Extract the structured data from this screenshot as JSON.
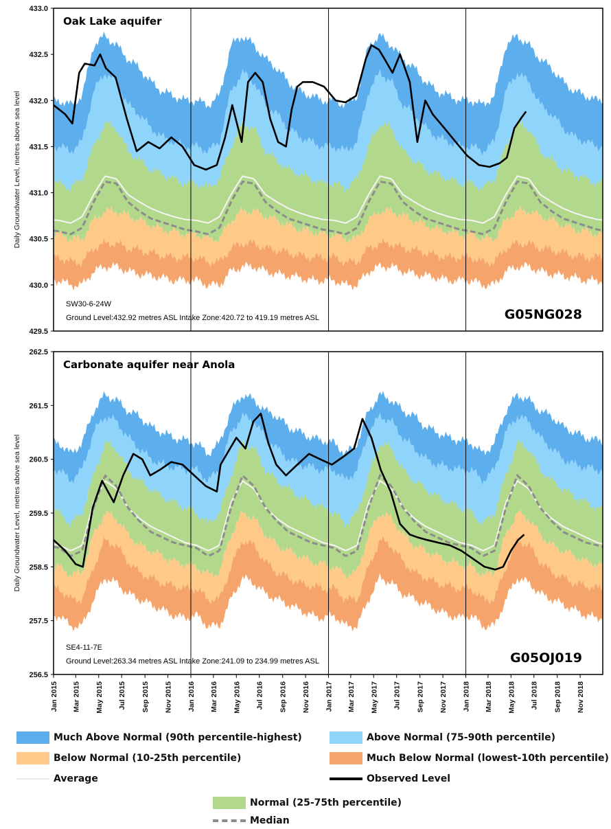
{
  "chart_data": [
    {
      "type": "area",
      "title": "Oak Lake aquifer",
      "ylabel": "Daily Groundwater Level, metres above sea level",
      "ylim": [
        429.5,
        433.0
      ],
      "yticks": [
        "433.0",
        "432.5",
        "432.0",
        "431.5",
        "431.0",
        "430.5",
        "430.0",
        "429.5"
      ],
      "xlim": [
        "2015-01-01",
        "2018-12-31"
      ],
      "year_dividers": [
        "2016-01-01",
        "2017-01-01",
        "2018-01-01"
      ],
      "site_location": "SW30-6-24W",
      "site_info": "Ground Level:432.92 metres ASL   Intake Zone:420.72 to 419.19 metres ASL",
      "station_id": "G05NG028",
      "annual_profile": {
        "month": [
          1,
          2,
          3,
          4,
          5,
          6,
          7,
          8,
          9,
          10,
          11,
          12
        ],
        "min": [
          430.05,
          430.0,
          430.0,
          430.15,
          430.2,
          430.2,
          430.15,
          430.12,
          430.1,
          430.08,
          430.05,
          430.05
        ],
        "p10": [
          430.3,
          430.25,
          430.25,
          430.4,
          430.45,
          430.45,
          430.4,
          430.38,
          430.35,
          430.32,
          430.3,
          430.3
        ],
        "p25": [
          430.55,
          430.5,
          430.5,
          430.7,
          430.8,
          430.8,
          430.75,
          430.7,
          430.65,
          430.6,
          430.58,
          430.55
        ],
        "median": [
          430.58,
          430.55,
          430.62,
          430.9,
          431.12,
          431.1,
          430.9,
          430.8,
          430.72,
          430.68,
          430.64,
          430.6
        ],
        "average": [
          430.7,
          430.67,
          430.74,
          430.98,
          431.18,
          431.15,
          430.98,
          430.9,
          430.83,
          430.78,
          430.74,
          430.71
        ],
        "p75": [
          431.1,
          431.05,
          431.15,
          431.5,
          431.75,
          431.7,
          431.45,
          431.35,
          431.25,
          431.2,
          431.15,
          431.1
        ],
        "p90": [
          431.5,
          431.45,
          431.55,
          432.1,
          432.3,
          432.2,
          431.95,
          431.85,
          431.7,
          431.6,
          431.55,
          431.5
        ],
        "max": [
          432.0,
          431.95,
          432.05,
          432.6,
          432.7,
          432.6,
          432.45,
          432.35,
          432.2,
          432.1,
          432.05,
          432.0
        ]
      },
      "observed": {
        "x": [
          "2015-01-01",
          "2015-02-01",
          "2015-02-20",
          "2015-03-10",
          "2015-03-25",
          "2015-04-20",
          "2015-05-05",
          "2015-05-20",
          "2015-06-15",
          "2015-07-15",
          "2015-08-10",
          "2015-09-10",
          "2015-10-10",
          "2015-11-10",
          "2015-12-10",
          "2016-01-10",
          "2016-02-10",
          "2016-03-10",
          "2016-04-01",
          "2016-04-20",
          "2016-05-15",
          "2016-06-01",
          "2016-06-20",
          "2016-07-10",
          "2016-07-30",
          "2016-08-20",
          "2016-09-10",
          "2016-09-25",
          "2016-10-10",
          "2016-10-25",
          "2016-11-20",
          "2016-12-20",
          "2017-01-20",
          "2017-02-15",
          "2017-03-15",
          "2017-04-10",
          "2017-04-25",
          "2017-05-15",
          "2017-05-30",
          "2017-06-20",
          "2017-07-10",
          "2017-08-05",
          "2017-08-25",
          "2017-09-15",
          "2017-10-05",
          "2017-11-05",
          "2017-12-05",
          "2018-01-05",
          "2018-02-05",
          "2018-03-05",
          "2018-04-01",
          "2018-04-20",
          "2018-05-10",
          "2018-05-30",
          "2018-06-10"
        ],
        "y": [
          431.95,
          431.85,
          431.75,
          432.3,
          432.4,
          432.38,
          432.5,
          432.35,
          432.25,
          431.8,
          431.45,
          431.55,
          431.48,
          431.6,
          431.5,
          431.3,
          431.25,
          431.3,
          431.6,
          431.95,
          431.55,
          432.2,
          432.3,
          432.2,
          431.8,
          431.55,
          431.5,
          431.9,
          432.15,
          432.2,
          432.2,
          432.15,
          432.0,
          431.98,
          432.05,
          432.45,
          432.6,
          432.55,
          432.45,
          432.3,
          432.5,
          432.2,
          431.55,
          432.0,
          431.85,
          431.7,
          431.55,
          431.4,
          431.3,
          431.28,
          431.32,
          431.38,
          431.7,
          431.82,
          431.88
        ]
      }
    },
    {
      "type": "area",
      "title": "Carbonate aquifer near Anola",
      "ylabel": "Daily Groundwater Level, metres above sea level",
      "ylim": [
        256.5,
        262.5
      ],
      "yticks": [
        "262.5",
        "261.5",
        "260.5",
        "259.5",
        "258.5",
        "257.5",
        "256.5"
      ],
      "xlim": [
        "2015-01-01",
        "2018-12-31"
      ],
      "year_dividers": [
        "2016-01-01",
        "2017-01-01",
        "2018-01-01"
      ],
      "site_location": "SE4-11-7E",
      "site_info": "Ground Level:263.34 metres ASL   Intake Zone:241.09 to 234.99 metres ASL",
      "station_id": "G05OJ019",
      "xticks": [
        "Jan 2015",
        "Mar 2015",
        "May 2015",
        "Jul 2015",
        "Sep 2015",
        "Nov 2015",
        "Jan 2016",
        "Mar 2016",
        "May 2016",
        "Jul 2016",
        "Sep 2016",
        "Nov 2016",
        "Jan 2017",
        "Mar 2017",
        "May 2017",
        "Jul 2017",
        "Sep 2017",
        "Nov 2017",
        "Jan 2018",
        "Mar 2018",
        "May 2018",
        "Jul 2018",
        "Sep 2018",
        "Nov 2018"
      ],
      "annual_profile": {
        "month": [
          1,
          2,
          3,
          4,
          5,
          6,
          7,
          8,
          9,
          10,
          11,
          12
        ],
        "min": [
          257.6,
          257.4,
          257.4,
          257.9,
          258.3,
          258.2,
          258.0,
          257.9,
          257.8,
          257.7,
          257.6,
          257.55
        ],
        "p10": [
          258.1,
          257.9,
          257.9,
          258.5,
          259.0,
          258.9,
          258.6,
          258.4,
          258.3,
          258.2,
          258.15,
          258.1
        ],
        "p25": [
          258.5,
          258.35,
          258.4,
          259.1,
          259.5,
          259.4,
          259.1,
          258.9,
          258.8,
          258.7,
          258.6,
          258.55
        ],
        "median": [
          258.85,
          258.7,
          258.8,
          259.6,
          260.2,
          260.0,
          259.6,
          259.35,
          259.15,
          259.05,
          258.95,
          258.9
        ],
        "average": [
          258.9,
          258.8,
          258.9,
          259.7,
          260.1,
          259.95,
          259.6,
          259.4,
          259.25,
          259.15,
          259.05,
          258.95
        ],
        "p75": [
          259.5,
          259.3,
          259.5,
          260.2,
          260.8,
          260.7,
          260.3,
          260.1,
          259.95,
          259.8,
          259.7,
          259.6
        ],
        "p90": [
          260.3,
          260.1,
          260.3,
          261.0,
          261.3,
          261.2,
          260.9,
          260.7,
          260.5,
          260.4,
          260.35,
          260.3
        ],
        "max": [
          260.8,
          260.6,
          260.8,
          261.4,
          261.7,
          261.6,
          261.4,
          261.3,
          261.1,
          261.0,
          260.9,
          260.85
        ]
      },
      "observed": {
        "x": [
          "2015-01-01",
          "2015-02-01",
          "2015-03-01",
          "2015-03-20",
          "2015-04-15",
          "2015-05-10",
          "2015-06-10",
          "2015-07-05",
          "2015-08-01",
          "2015-08-25",
          "2015-09-15",
          "2015-10-10",
          "2015-11-10",
          "2015-12-10",
          "2016-01-10",
          "2016-02-10",
          "2016-03-10",
          "2016-03-20",
          "2016-05-01",
          "2016-05-25",
          "2016-06-15",
          "2016-07-05",
          "2016-07-25",
          "2016-08-15",
          "2016-09-10",
          "2016-10-10",
          "2016-11-10",
          "2016-12-10",
          "2017-01-10",
          "2017-02-10",
          "2017-03-10",
          "2017-04-01",
          "2017-04-25",
          "2017-05-20",
          "2017-06-15",
          "2017-07-10",
          "2017-08-05",
          "2017-08-25",
          "2017-09-20",
          "2017-10-20",
          "2017-11-20",
          "2017-12-20",
          "2018-01-20",
          "2018-02-20",
          "2018-03-20",
          "2018-04-10",
          "2018-05-01",
          "2018-05-20",
          "2018-06-05"
        ],
        "y": [
          259.0,
          258.8,
          258.55,
          258.5,
          259.6,
          260.1,
          259.7,
          260.2,
          260.6,
          260.5,
          260.2,
          260.3,
          260.45,
          260.4,
          260.2,
          260.0,
          259.9,
          260.4,
          260.9,
          260.7,
          261.2,
          261.35,
          260.8,
          260.4,
          260.2,
          260.4,
          260.6,
          260.5,
          260.4,
          260.55,
          260.7,
          261.25,
          260.9,
          260.3,
          259.9,
          259.3,
          259.1,
          259.05,
          259.0,
          258.95,
          258.9,
          258.8,
          258.65,
          258.5,
          258.45,
          258.5,
          258.8,
          259.0,
          259.1
        ]
      }
    }
  ],
  "legend": [
    {
      "label": "Much Above Normal (90th percentile-highest)",
      "kind": "band",
      "color": "#5daeed"
    },
    {
      "label": "Above Normal (75-90th percentile)",
      "kind": "band",
      "color": "#8fd4fa"
    },
    {
      "label": "Below Normal (10-25th percentile)",
      "kind": "band",
      "color": "#ffc987"
    },
    {
      "label": "Much Below Normal (lowest-10th percentile)",
      "kind": "band",
      "color": "#f5a56c"
    },
    {
      "label": "Average",
      "kind": "line",
      "color": "#f2f2f2"
    },
    {
      "label": "Observed Level",
      "kind": "line",
      "color": "#000000"
    },
    {
      "label": "Normal (25-75th percentile)",
      "kind": "band",
      "color": "#b2d98b"
    },
    {
      "label": "Median",
      "kind": "dash",
      "color": "#8c8c8c"
    }
  ]
}
